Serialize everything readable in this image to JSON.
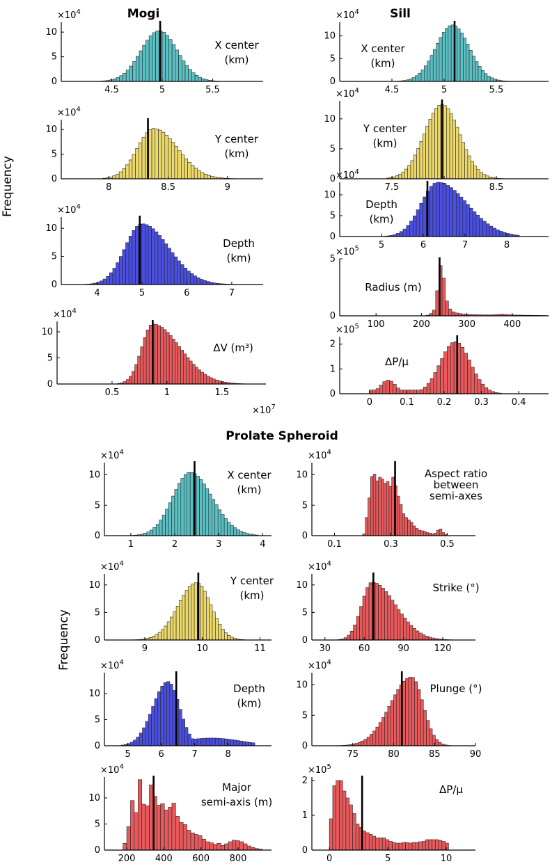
{
  "sections": {
    "mogi": "Mogi",
    "sill": "Sill",
    "prolate": "Prolate Spheroid"
  },
  "ylabel": "Frequency",
  "colors": {
    "cyan": "#5bc0c4",
    "yellow": "#ecd96a",
    "blue": "#4a4fe0",
    "red": "#e9595b",
    "stroke": "#222222",
    "marker": "#000000"
  },
  "chart_data": [
    {
      "id": "mogi_x",
      "type": "bar",
      "group": "mogi",
      "color": "cyan",
      "label": [
        "X center",
        "(km)"
      ],
      "multiplier": "×10^4",
      "xlim": [
        4.0,
        6.0
      ],
      "xticks": [
        4.5,
        5,
        5.5
      ],
      "xtick_labels": [
        "4.5",
        "5",
        "5.5"
      ],
      "ylim": [
        0,
        12
      ],
      "yticks": [
        0,
        5,
        10
      ],
      "ytick_labels": [
        "0",
        "5",
        "10"
      ],
      "marker": 4.98,
      "dist": {
        "kind": "normal",
        "mu": 4.97,
        "sigma": 0.18,
        "peak": 10.3,
        "bins": 40,
        "range": [
          4.35,
          5.65
        ]
      },
      "ypos": "main",
      "pcolor": "#5bc0c4"
    },
    {
      "id": "mogi_y",
      "type": "bar",
      "group": "mogi",
      "color": "yellow",
      "label": [
        "Y center",
        "(km)"
      ],
      "multiplier": "×10^4",
      "xlim": [
        7.6,
        9.3
      ],
      "xticks": [
        8,
        8.5,
        9
      ],
      "xtick_labels": [
        "8",
        "8.5",
        "9"
      ],
      "ylim": [
        0,
        12
      ],
      "yticks": [
        0,
        5,
        10
      ],
      "ytick_labels": [
        "0",
        "5",
        "10"
      ],
      "marker": 8.33,
      "dist": {
        "kind": "skew",
        "mu": 8.38,
        "sigmaL": 0.14,
        "sigmaR": 0.2,
        "peak": 10.2,
        "bins": 40,
        "range": [
          7.95,
          9.05
        ]
      }
    },
    {
      "id": "mogi_depth",
      "type": "bar",
      "group": "mogi",
      "color": "blue",
      "label": [
        "Depth",
        "(km)"
      ],
      "multiplier": "×10^4",
      "xlim": [
        3.2,
        7.7
      ],
      "xticks": [
        4,
        5,
        6,
        7
      ],
      "xtick_labels": [
        "4",
        "5",
        "6",
        "7"
      ],
      "ylim": [
        0,
        12
      ],
      "yticks": [
        0,
        5,
        10
      ],
      "ytick_labels": [
        "0",
        "5",
        "10"
      ],
      "marker": 4.95,
      "dist": {
        "kind": "skew",
        "mu": 5.0,
        "sigmaL": 0.38,
        "sigmaR": 0.6,
        "peak": 10.8,
        "bins": 50,
        "range": [
          3.7,
          7.3
        ]
      }
    },
    {
      "id": "mogi_dv",
      "type": "bar",
      "group": "mogi",
      "color": "red",
      "label": [
        "ΔV (m³)"
      ],
      "multiplier": "×10^4",
      "xmult": "×10^7",
      "xlim": [
        0.0,
        1.9
      ],
      "xticks": [
        0.5,
        1,
        1.5
      ],
      "xtick_labels": [
        "0.5",
        "1",
        "1.5"
      ],
      "ylim": [
        0,
        12
      ],
      "yticks": [
        0,
        5,
        10
      ],
      "ytick_labels": [
        "0",
        "5",
        "10"
      ],
      "marker": 0.87,
      "dist": {
        "kind": "skew",
        "mu": 0.87,
        "sigmaL": 0.1,
        "sigmaR": 0.25,
        "peak": 11.5,
        "bins": 44,
        "range": [
          0.55,
          1.7
        ]
      }
    },
    {
      "id": "sill_x",
      "type": "bar",
      "group": "sill",
      "color": "cyan",
      "label": [
        "X center",
        "(km)"
      ],
      "multiplier": "×10^4",
      "xlim": [
        4.0,
        6.0
      ],
      "xticks": [
        4.5,
        5,
        5.5
      ],
      "xtick_labels": [
        "4.5",
        "5",
        "5.5"
      ],
      "ylim": [
        0,
        13
      ],
      "yticks": [
        0,
        5,
        10
      ],
      "ytick_labels": [
        "0",
        "5",
        "10"
      ],
      "marker": 5.1,
      "dist": {
        "kind": "normal",
        "mu": 5.08,
        "sigma": 0.16,
        "peak": 12.4,
        "bins": 40,
        "range": [
          4.55,
          5.7
        ]
      }
    },
    {
      "id": "sill_y",
      "type": "bar",
      "group": "sill",
      "color": "yellow",
      "label": [
        "Y center",
        "(km)"
      ],
      "multiplier": "×10^4",
      "xlim": [
        7.0,
        9.0
      ],
      "xticks": [
        7.5,
        8,
        8.5
      ],
      "xtick_labels": [
        "7.5",
        "8",
        "8.5"
      ],
      "ylim": [
        0,
        13
      ],
      "yticks": [
        0,
        5,
        10
      ],
      "ytick_labels": [
        "0",
        "5",
        "10"
      ],
      "marker": 7.98,
      "dist": {
        "kind": "normal",
        "mu": 7.98,
        "sigma": 0.17,
        "peak": 12.4,
        "bins": 40,
        "range": [
          7.45,
          8.6
        ]
      }
    },
    {
      "id": "sill_depth",
      "type": "bar",
      "group": "sill",
      "color": "blue",
      "label": [
        "Depth",
        "(km)"
      ],
      "multiplier": "×10^4",
      "xlim": [
        4.0,
        9.0
      ],
      "xticks": [
        5,
        6,
        7,
        8
      ],
      "xtick_labels": [
        "5",
        "6",
        "7",
        "8"
      ],
      "ylim": [
        0,
        13
      ],
      "yticks": [
        0,
        5,
        10
      ],
      "ytick_labels": [
        "0",
        "5",
        "10"
      ],
      "marker": 6.1,
      "dist": {
        "kind": "skew",
        "mu": 6.35,
        "sigmaL": 0.4,
        "sigmaR": 0.7,
        "peak": 13.0,
        "bins": 44,
        "range": [
          4.8,
          8.3
        ]
      }
    },
    {
      "id": "sill_radius",
      "type": "bar",
      "group": "sill",
      "color": "red",
      "label": [
        "Radius (m)"
      ],
      "multiplier": "×10^5",
      "xlim": [
        20,
        480
      ],
      "xticks": [
        100,
        200,
        300,
        400
      ],
      "xtick_labels": [
        "100",
        "200",
        "300",
        "400"
      ],
      "ylim": [
        0,
        5
      ],
      "yticks": [
        0,
        5
      ],
      "ytick_labels": [
        "0",
        "5"
      ],
      "marker": 240,
      "dist": {
        "kind": "custom",
        "range": [
          210,
          480
        ],
        "bins": 38,
        "values": [
          0.05,
          0.2,
          0.5,
          2.2,
          4.4,
          3.3,
          1.3,
          0.6,
          0.35,
          0.25,
          0.2,
          0.16,
          0.13,
          0.12,
          0.1,
          0.1,
          0.09,
          0.08,
          0.08,
          0.07,
          0.08,
          0.1,
          0.12,
          0.14,
          0.12,
          0.1,
          0.08,
          0.07,
          0.06,
          0.06,
          0.05,
          0.05,
          0.05,
          0.04,
          0.04,
          0.03,
          0.03,
          0.02
        ]
      }
    },
    {
      "id": "sill_dp",
      "type": "bar",
      "group": "sill",
      "color": "red",
      "label": [
        "ΔP/μ"
      ],
      "multiplier": "×10^5",
      "xlim": [
        -0.08,
        0.48
      ],
      "xticks": [
        0,
        0.1,
        0.2,
        0.3,
        0.4
      ],
      "xtick_labels": [
        "0",
        "0.1",
        "0.2",
        "0.3",
        "0.4"
      ],
      "ylim": [
        0,
        2.3
      ],
      "yticks": [
        0,
        1,
        2
      ],
      "ytick_labels": [
        "0",
        "1",
        "2"
      ],
      "marker": 0.235,
      "dist": {
        "kind": "bimodal",
        "mu": 0.23,
        "sigma": 0.04,
        "peak": 2.1,
        "mu2": 0.05,
        "sigma2": 0.02,
        "peak2": 0.55,
        "floor": 0.15,
        "floorRange": [
          0.0,
          0.2
        ],
        "bins": 44,
        "range": [
          -0.01,
          0.39
        ]
      }
    },
    {
      "id": "pro_x",
      "type": "bar",
      "group": "prolate",
      "color": "cyan",
      "label": [
        "X center",
        "(km)"
      ],
      "multiplier": "×10^4",
      "xlim": [
        0.4,
        4.2
      ],
      "xticks": [
        1,
        2,
        3,
        4
      ],
      "xtick_labels": [
        "1",
        "2",
        "3",
        "4"
      ],
      "ylim": [
        0,
        12
      ],
      "yticks": [
        0,
        5,
        10
      ],
      "ytick_labels": [
        "0",
        "5",
        "10"
      ],
      "marker": 2.45,
      "dist": {
        "kind": "skew",
        "mu": 2.35,
        "sigmaL": 0.4,
        "sigmaR": 0.5,
        "peak": 10.4,
        "bins": 44,
        "range": [
          0.8,
          3.9
        ]
      }
    },
    {
      "id": "pro_y",
      "type": "bar",
      "group": "prolate",
      "color": "yellow",
      "label": [
        "Y center",
        "(km)"
      ],
      "multiplier": "×10^4",
      "xlim": [
        8.3,
        11.2
      ],
      "xticks": [
        9,
        10,
        11
      ],
      "xtick_labels": [
        "9",
        "10",
        "11"
      ],
      "ylim": [
        0,
        12
      ],
      "yticks": [
        0,
        5,
        10
      ],
      "ytick_labels": [
        "0",
        "5",
        "10"
      ],
      "marker": 9.93,
      "dist": {
        "kind": "skew",
        "mu": 9.9,
        "sigmaL": 0.32,
        "sigmaR": 0.25,
        "peak": 10.4,
        "bins": 44,
        "range": [
          8.5,
          10.8
        ]
      }
    },
    {
      "id": "pro_depth",
      "type": "bar",
      "group": "prolate",
      "color": "blue",
      "label": [
        "Depth",
        "(km)"
      ],
      "multiplier": "×10^4",
      "xlim": [
        4.3,
        9.3
      ],
      "xticks": [
        5,
        6,
        7,
        8
      ],
      "xtick_labels": [
        "5",
        "6",
        "7",
        "8"
      ],
      "ylim": [
        0,
        14
      ],
      "yticks": [
        0,
        5,
        10
      ],
      "ytick_labels": [
        "0",
        "5",
        "10"
      ],
      "marker": 6.45,
      "dist": {
        "kind": "skew",
        "mu": 6.2,
        "sigmaL": 0.45,
        "sigmaR": 0.35,
        "tail": 0.12,
        "peak": 12.3,
        "bins": 44,
        "range": [
          4.8,
          8.8
        ]
      }
    },
    {
      "id": "pro_major",
      "type": "bar",
      "group": "prolate",
      "color": "red",
      "label": [
        "Major",
        "semi-axis (m)"
      ],
      "multiplier": "×10^4",
      "xlim": [
        80,
        980
      ],
      "xticks": [
        200,
        400,
        600,
        800
      ],
      "xtick_labels": [
        "200",
        "400",
        "600",
        "800"
      ],
      "ylim": [
        0,
        14
      ],
      "yticks": [
        0,
        5,
        10
      ],
      "ytick_labels": [
        "0",
        "5",
        "10"
      ],
      "marker": 345,
      "dist": {
        "kind": "custom",
        "range": [
          180,
          930
        ],
        "bins": 37,
        "values": [
          1.3,
          4.5,
          9.5,
          7.2,
          13.5,
          8.8,
          8.5,
          12.5,
          10.3,
          8.6,
          8.9,
          7.7,
          8.2,
          9.0,
          6.5,
          5.3,
          4.9,
          3.8,
          3.3,
          3.0,
          2.8,
          2.1,
          1.6,
          1.4,
          1.1,
          1.3,
          0.9,
          1.2,
          1.6,
          1.9,
          1.8,
          1.6,
          1.2,
          0.8,
          0.5,
          0.3,
          0.2
        ]
      }
    },
    {
      "id": "pro_aspect",
      "type": "bar",
      "group": "prolate",
      "color": "red",
      "label": [
        "Aspect ratio",
        "between",
        "semi-axes"
      ],
      "multiplier": "×10^4",
      "xlim": [
        0.02,
        0.6
      ],
      "xticks": [
        0.1,
        0.3,
        0.5
      ],
      "xtick_labels": [
        "0.1",
        "0.3",
        "0.5"
      ],
      "ylim": [
        0,
        12
      ],
      "yticks": [
        0,
        5,
        10
      ],
      "ytick_labels": [
        "0",
        "5",
        "10"
      ],
      "marker": 0.315,
      "dist": {
        "kind": "custom",
        "range": [
          0.2,
          0.5
        ],
        "bins": 32,
        "values": [
          0.3,
          3.0,
          6.2,
          9.7,
          10.1,
          9.0,
          9.6,
          9.3,
          8.6,
          8.9,
          8.1,
          9.6,
          8.2,
          6.5,
          5.1,
          3.6,
          3.0,
          2.6,
          2.2,
          1.6,
          1.2,
          0.9,
          0.8,
          0.7,
          0.5,
          0.4,
          0.3,
          0.4,
          0.9,
          1.1,
          0.5,
          0.2
        ]
      }
    },
    {
      "id": "pro_strike",
      "type": "bar",
      "group": "prolate",
      "color": "red",
      "label": [
        "Strike (°)"
      ],
      "multiplier": "×10^4",
      "xlim": [
        20,
        145
      ],
      "xticks": [
        30,
        60,
        90,
        120
      ],
      "xtick_labels": [
        "30",
        "60",
        "90",
        "120"
      ],
      "ylim": [
        0,
        12
      ],
      "yticks": [
        0,
        5,
        10
      ],
      "ytick_labels": [
        "0",
        "5",
        "10"
      ],
      "marker": 67,
      "dist": {
        "kind": "skew",
        "mu": 66,
        "sigmaL": 8,
        "sigmaR": 18,
        "peak": 10.5,
        "bins": 44,
        "range": [
          35,
          140
        ]
      }
    },
    {
      "id": "pro_plunge",
      "type": "bar",
      "group": "prolate",
      "color": "red",
      "label": [
        "Plunge (°)"
      ],
      "multiplier": "×10^4",
      "xlim": [
        70,
        90
      ],
      "xticks": [
        75,
        80,
        85,
        90
      ],
      "xtick_labels": [
        "75",
        "80",
        "85",
        "90"
      ],
      "ylim": [
        0,
        12
      ],
      "yticks": [
        0,
        5,
        10
      ],
      "ytick_labels": [
        "0",
        "5",
        "10"
      ],
      "marker": 81,
      "dist": {
        "kind": "skew",
        "mu": 82.2,
        "sigmaL": 2.6,
        "sigmaR": 1.4,
        "peak": 11.3,
        "bins": 44,
        "range": [
          72,
          88
        ]
      }
    },
    {
      "id": "pro_dp",
      "type": "bar",
      "group": "prolate",
      "color": "red",
      "label": [
        "ΔP/μ"
      ],
      "multiplier": "×10^5",
      "xlim": [
        -1.5,
        12.5
      ],
      "xticks": [
        0,
        5,
        10
      ],
      "xtick_labels": [
        "0",
        "5",
        "10"
      ],
      "ylim": [
        0,
        2.1
      ],
      "yticks": [
        0,
        1,
        2
      ],
      "ytick_labels": [
        "0",
        "1",
        "2"
      ],
      "marker": 2.8,
      "dist": {
        "kind": "custom",
        "range": [
          0,
          10.2
        ],
        "bins": 36,
        "values": [
          0.9,
          1.85,
          2.0,
          2.0,
          1.7,
          1.5,
          1.3,
          1.05,
          0.75,
          0.65,
          0.55,
          0.5,
          0.45,
          0.4,
          0.35,
          0.35,
          0.35,
          0.3,
          0.25,
          0.22,
          0.2,
          0.2,
          0.22,
          0.22,
          0.2,
          0.22,
          0.22,
          0.24,
          0.25,
          0.3,
          0.3,
          0.3,
          0.3,
          0.28,
          0.25,
          0.2
        ]
      }
    }
  ]
}
